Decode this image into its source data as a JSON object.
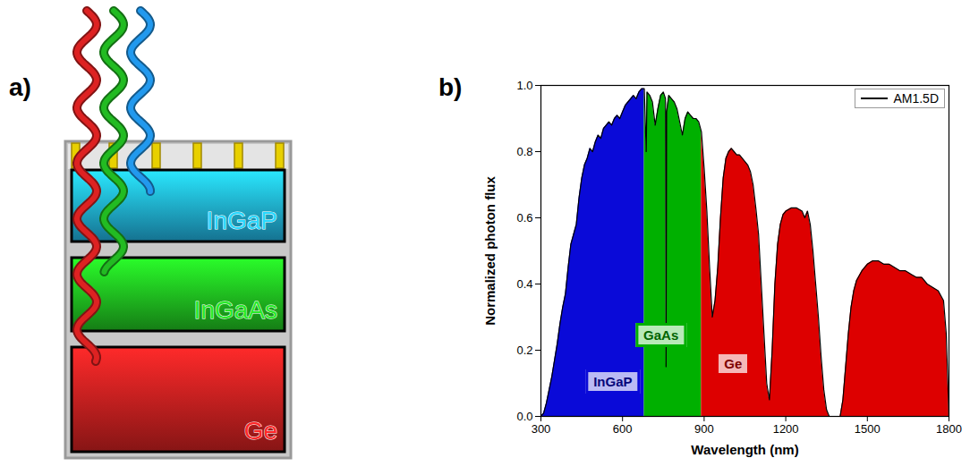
{
  "diagram": {
    "label": "a)",
    "layers": [
      {
        "label": "InGaP",
        "color": "#22bbee"
      },
      {
        "label": "InGaAs",
        "color": "#22cc22"
      },
      {
        "label": "Ge",
        "color": "#dd2222"
      }
    ]
  },
  "chart_data": {
    "label": "b)",
    "type": "area",
    "xlabel": "Wavelength (nm)",
    "ylabel": "Normalized photon flux",
    "x": [
      300,
      310,
      320,
      330,
      340,
      350,
      360,
      370,
      380,
      390,
      400,
      410,
      420,
      430,
      440,
      450,
      460,
      470,
      480,
      490,
      500,
      510,
      520,
      530,
      540,
      550,
      560,
      570,
      580,
      590,
      600,
      610,
      620,
      630,
      640,
      650,
      660,
      670,
      680,
      687,
      690,
      700,
      710,
      720,
      730,
      740,
      750,
      758,
      760,
      762,
      770,
      780,
      790,
      800,
      810,
      820,
      830,
      840,
      850,
      860,
      870,
      880,
      890,
      900,
      910,
      920,
      930,
      940,
      950,
      960,
      970,
      980,
      990,
      1000,
      1010,
      1020,
      1030,
      1040,
      1050,
      1060,
      1070,
      1080,
      1090,
      1100,
      1110,
      1120,
      1130,
      1140,
      1150,
      1160,
      1170,
      1180,
      1190,
      1200,
      1220,
      1240,
      1260,
      1270,
      1280,
      1290,
      1300,
      1310,
      1320,
      1330,
      1340,
      1350,
      1360,
      1400,
      1410,
      1420,
      1430,
      1440,
      1450,
      1460,
      1480,
      1500,
      1520,
      1540,
      1560,
      1580,
      1600,
      1620,
      1640,
      1660,
      1680,
      1700,
      1720,
      1740,
      1760,
      1780,
      1790,
      1800
    ],
    "series": [
      {
        "name": "AM1.5D",
        "color": "#000000",
        "values": [
          0.0,
          0.01,
          0.04,
          0.08,
          0.12,
          0.17,
          0.22,
          0.28,
          0.33,
          0.37,
          0.45,
          0.52,
          0.55,
          0.58,
          0.66,
          0.72,
          0.76,
          0.78,
          0.81,
          0.8,
          0.83,
          0.85,
          0.84,
          0.87,
          0.88,
          0.89,
          0.88,
          0.9,
          0.91,
          0.9,
          0.92,
          0.94,
          0.95,
          0.96,
          0.97,
          0.96,
          0.98,
          0.99,
          0.99,
          0.8,
          0.98,
          0.97,
          0.95,
          0.88,
          0.93,
          0.97,
          0.98,
          0.96,
          0.15,
          0.92,
          0.97,
          0.96,
          0.95,
          0.93,
          0.89,
          0.85,
          0.9,
          0.92,
          0.91,
          0.9,
          0.9,
          0.89,
          0.86,
          0.75,
          0.62,
          0.45,
          0.3,
          0.35,
          0.45,
          0.6,
          0.72,
          0.78,
          0.8,
          0.81,
          0.8,
          0.79,
          0.79,
          0.78,
          0.77,
          0.76,
          0.74,
          0.7,
          0.63,
          0.55,
          0.4,
          0.25,
          0.1,
          0.05,
          0.2,
          0.4,
          0.52,
          0.58,
          0.61,
          0.62,
          0.63,
          0.63,
          0.62,
          0.6,
          0.62,
          0.58,
          0.5,
          0.4,
          0.3,
          0.18,
          0.08,
          0.02,
          0.0,
          0.0,
          0.05,
          0.15,
          0.25,
          0.33,
          0.38,
          0.41,
          0.44,
          0.46,
          0.47,
          0.47,
          0.46,
          0.46,
          0.45,
          0.44,
          0.44,
          0.43,
          0.42,
          0.42,
          0.4,
          0.39,
          0.38,
          0.35,
          0.25,
          0.0
        ]
      }
    ],
    "regions": [
      {
        "label": "InGaP",
        "color": "#0a0ad8",
        "range": [
          300,
          680
        ]
      },
      {
        "label": "GaAs",
        "color": "#00b000",
        "range": [
          680,
          890
        ]
      },
      {
        "label": "Ge",
        "color": "#dd0000",
        "range": [
          890,
          1800
        ]
      }
    ],
    "xlim": [
      300,
      1800
    ],
    "xticks": [
      300,
      600,
      900,
      1200,
      1500,
      1800
    ],
    "ylim": [
      0,
      1.0
    ],
    "yticks": [
      {
        "value": 0,
        "label": "0.0"
      },
      {
        "value": 0.2,
        "label": "0.2"
      },
      {
        "value": 0.4,
        "label": "0.4"
      },
      {
        "value": 0.6,
        "label": "0.6"
      },
      {
        "value": 0.8,
        "label": "0.8"
      },
      {
        "value": 1.0,
        "label": "1.0"
      }
    ],
    "legend": "top-right"
  }
}
